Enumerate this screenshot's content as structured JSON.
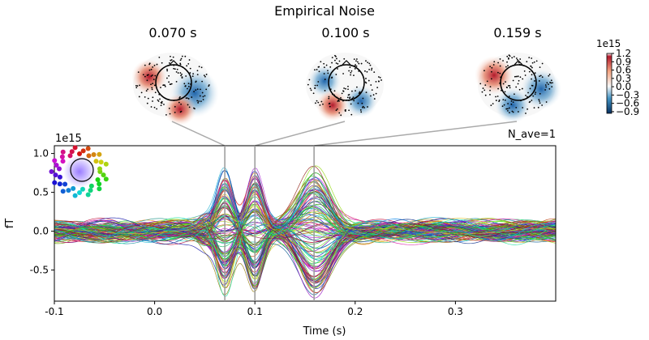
{
  "chart_data": {
    "type": "line",
    "title": "Empirical Noise",
    "xlabel": "Time (s)",
    "ylabel": "fT",
    "y_scale_label": "1e15",
    "annotation": "N_ave=1",
    "xlim": [
      -0.1,
      0.4
    ],
    "ylim": [
      -0.9,
      1.1
    ],
    "xticks": [
      "-0.1",
      "0.0",
      "0.1",
      "0.2",
      "0.3"
    ],
    "xtick_values": [
      -0.1,
      0.0,
      0.1,
      0.2,
      0.3
    ],
    "yticks": [
      "1.0",
      "0.5",
      "0.0",
      "-0.5"
    ],
    "ytick_values": [
      1.0,
      0.5,
      0.0,
      -0.5
    ],
    "topomap_times": [
      0.07,
      0.1,
      0.159
    ],
    "topomap_labels": [
      "0.070 s",
      "0.100 s",
      "0.159 s"
    ],
    "colorbar": {
      "scale_label": "1e15",
      "ticks": [
        "1.2",
        "0.9",
        "0.6",
        "0.3",
        "0.0",
        "−0.3",
        "−0.6",
        "−0.9"
      ],
      "tick_values": [
        1.2,
        0.9,
        0.6,
        0.3,
        0.0,
        -0.3,
        -0.6,
        -0.9
      ],
      "colormap": "RdBu_r"
    },
    "grid": false,
    "legend": "sensor-color head inset top-left"
  }
}
